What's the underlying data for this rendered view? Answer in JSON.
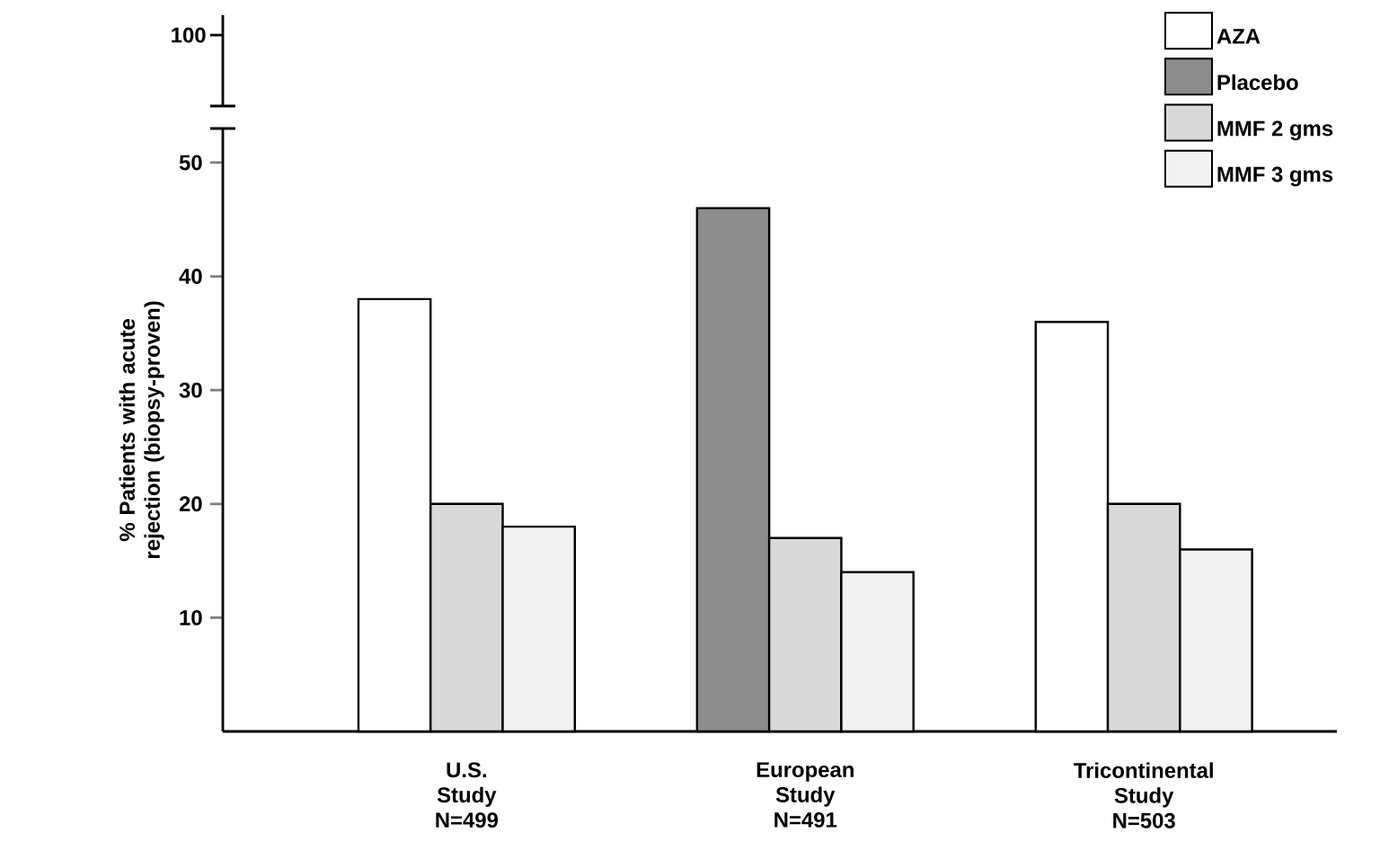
{
  "chart_data": [
    {
      "type": "other",
      "annotations": [
        "100"
      ]
    },
    {
      "type": "bar",
      "ylabel": "% Patients with acute rejection (biopsy-proven)",
      "categories": [
        "U.S. Study N=499",
        "European Study N=491",
        "Tricontinental Study N=503"
      ],
      "series": [
        {
          "name": "AZA",
          "color": "#ffffff",
          "values": [
            38,
            null,
            36
          ]
        },
        {
          "name": "Placebo",
          "color": "#8c8c8c",
          "values": [
            null,
            46,
            null
          ]
        },
        {
          "name": "MMF 2 gms",
          "color": "#d9d9d9",
          "values": [
            20,
            17,
            20
          ]
        },
        {
          "name": "MMF 3 gms",
          "color": "#f2f2f2",
          "values": [
            18,
            14,
            16
          ]
        }
      ],
      "ylim": [
        0,
        53
      ],
      "yticks": [
        10,
        20,
        30,
        40,
        50
      ],
      "legend": "top right"
    }
  ]
}
